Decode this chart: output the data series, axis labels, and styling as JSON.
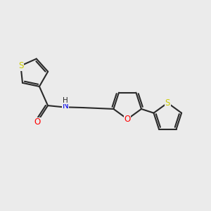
{
  "bg_color": "#ebebeb",
  "bond_color": "#2a2a2a",
  "bond_width": 1.5,
  "atom_colors": {
    "S": "#cccc00",
    "O": "#ff0000",
    "N": "#0000ee",
    "H": "#2a2a2a"
  },
  "font_size": 8.5,
  "figsize": [
    3.0,
    3.0
  ],
  "dpi": 100
}
